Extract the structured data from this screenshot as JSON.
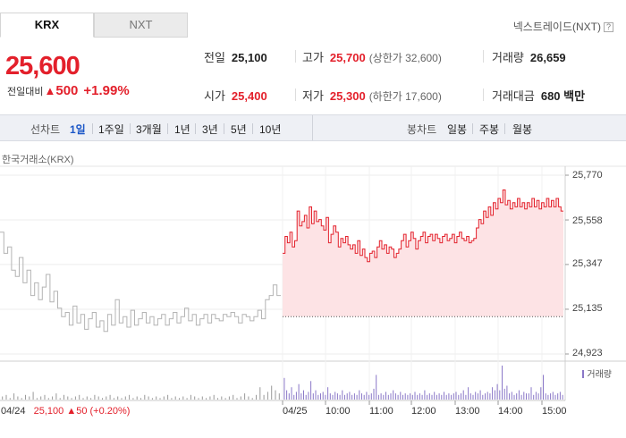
{
  "tabs": [
    {
      "label": "KRX",
      "active": true
    },
    {
      "label": "NXT",
      "active": false
    }
  ],
  "nxt_link": "넥스트레이드(NXT)",
  "quote": {
    "price": "25,600",
    "change_label": "전일대비",
    "change_amount": "500",
    "change_percent": "+1.99%"
  },
  "stats": {
    "prev_close": {
      "label": "전일",
      "value": "25,100"
    },
    "open": {
      "label": "시가",
      "value": "25,400"
    },
    "high": {
      "label": "고가",
      "value": "25,700",
      "sub": "(상한가 32,600)"
    },
    "low": {
      "label": "저가",
      "value": "25,300",
      "sub": "(하한가 17,600)"
    },
    "volume": {
      "label": "거래량",
      "value": "26,659"
    },
    "amount": {
      "label": "거래대금",
      "value": "680 백만"
    }
  },
  "toolbar": {
    "line_label": "선차트",
    "periods": [
      "1일",
      "1주일",
      "3개월",
      "1년",
      "3년",
      "5년",
      "10년"
    ],
    "selected_period": "1일",
    "candle_label": "봉차트",
    "candle_periods": [
      "일봉",
      "주봉",
      "월봉"
    ]
  },
  "exchange_label": "한국거래소(KRX)",
  "volume_legend": "거래량",
  "prev_day_summary": {
    "date": "04/24",
    "price": "25,100",
    "change": "50",
    "pct": "(+0.20%)"
  },
  "colors": {
    "up": "#e3202b",
    "prev_line": "#b4b4b4",
    "fill": "#fde3e5",
    "volume": "#8a78c8",
    "volume_prev": "#9a9a9a"
  },
  "chart_data": {
    "type": "line",
    "ylim": [
      24923,
      25770
    ],
    "yticks": [
      25770,
      25558,
      25347,
      25135,
      24923
    ],
    "ytick_labels": [
      "25,770",
      "25,558",
      "25,347",
      "25,135",
      "24,923"
    ],
    "xtick_labels": [
      "04/24",
      "04/25",
      "10:00",
      "11:00",
      "12:00",
      "13:00",
      "14:00",
      "15:00"
    ],
    "reference_line": 25100,
    "series": [
      {
        "values": [
          25500,
          25400,
          25430,
          25320,
          25290,
          25380,
          25260,
          25320,
          25200,
          25260,
          25180,
          25240,
          25300,
          25170,
          25220,
          25140,
          25100,
          25120,
          25060,
          25150,
          25070,
          25110,
          25040,
          25090,
          25120,
          25050,
          25080,
          25030,
          25110,
          25060,
          25180,
          25070,
          25100,
          25050,
          25130,
          25060,
          25090,
          25120,
          25070,
          25100,
          25060,
          25090,
          25110,
          25060,
          25090,
          25120,
          25070,
          25100,
          25140,
          25080,
          25110,
          25060,
          25090,
          25110,
          25070,
          25110,
          25090,
          25080,
          25110,
          25100,
          25120,
          25100,
          25070,
          25110,
          25100,
          25080,
          25100,
          25130,
          25090,
          25180,
          25200,
          25250,
          25200
        ]
      },
      {
        "values": [
          25400,
          25480,
          25450,
          25500,
          25430,
          25460,
          25600,
          25530,
          25550,
          25580,
          25520,
          25620,
          25540,
          25600,
          25550,
          25560,
          25530,
          25510,
          25570,
          25450,
          25490,
          25530,
          25500,
          25430,
          25470,
          25450,
          25480,
          25440,
          25420,
          25440,
          25400,
          25460,
          25390,
          25420,
          25380,
          25360,
          25400,
          25410,
          25380,
          25430,
          25460,
          25420,
          25440,
          25400,
          25430,
          25420,
          25380,
          25400,
          25420,
          25460,
          25490,
          25430,
          25460,
          25500,
          25470,
          25420,
          25460,
          25480,
          25500,
          25450,
          25480,
          25490,
          25460,
          25490,
          25470,
          25450,
          25480,
          25490,
          25460,
          25470,
          25490,
          25450,
          25480,
          25500,
          25470,
          25460,
          25480,
          25450,
          25460,
          25470,
          25520,
          25560,
          25540,
          25600,
          25570,
          25620,
          25580,
          25640,
          25610,
          25660,
          25640,
          25700,
          25630,
          25650,
          25610,
          25640,
          25620,
          25660,
          25620,
          25640,
          25610,
          25640,
          25620,
          25660,
          25620,
          25650,
          25610,
          25640,
          25620,
          25660,
          25620,
          25650,
          25620,
          25660,
          25620,
          25600
        ]
      }
    ],
    "volume": {
      "prev": [
        2,
        3,
        1,
        4,
        2,
        1,
        3,
        2,
        5,
        1,
        2,
        3,
        1,
        2,
        4,
        1,
        3,
        2,
        1,
        2,
        3,
        1,
        2,
        1,
        3,
        2,
        1,
        2,
        3,
        1,
        2,
        1,
        2,
        3,
        1,
        2,
        1,
        3,
        2,
        1,
        2,
        1,
        2,
        3,
        1,
        2,
        1,
        2,
        1,
        3,
        2,
        1,
        2,
        1,
        2,
        3,
        1,
        2,
        1,
        2,
        3,
        1,
        2,
        4,
        2,
        1,
        3,
        8,
        3,
        5,
        9,
        6,
        4
      ],
      "today": [
        14,
        6,
        4,
        8,
        3,
        5,
        10,
        4,
        6,
        3,
        5,
        12,
        4,
        6,
        3,
        4,
        5,
        3,
        8,
        4,
        3,
        5,
        4,
        3,
        6,
        3,
        4,
        5,
        3,
        4,
        3,
        6,
        4,
        3,
        5,
        3,
        4,
        7,
        16,
        3,
        4,
        3,
        5,
        3,
        4,
        6,
        4,
        3,
        5,
        3,
        4,
        3,
        4,
        3,
        5,
        3,
        4,
        3,
        6,
        3,
        4,
        3,
        5,
        3,
        4,
        3,
        5,
        3,
        4,
        3,
        4,
        5,
        3,
        4,
        6,
        3,
        8,
        4,
        3,
        5,
        4,
        6,
        3,
        4,
        5,
        4,
        8,
        6,
        10,
        6,
        22,
        7,
        9,
        4,
        5,
        3,
        4,
        6,
        3,
        5,
        4,
        4,
        8,
        3,
        5,
        4,
        8,
        16,
        4,
        3,
        4,
        5,
        3,
        4,
        5,
        3
      ]
    }
  }
}
